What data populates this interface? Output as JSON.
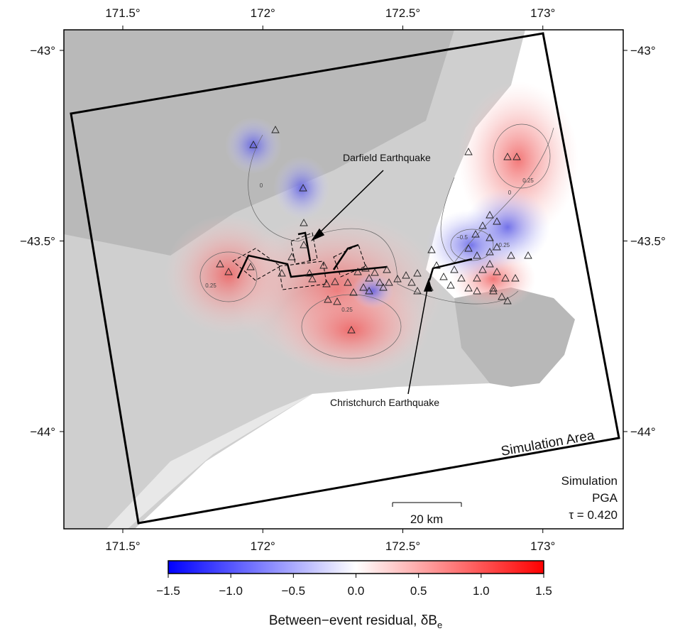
{
  "map": {
    "lon_ticks": [
      {
        "value": 171.5,
        "label": "171.5°"
      },
      {
        "value": 172,
        "label": "172°"
      },
      {
        "value": 172.5,
        "label": "172.5°"
      },
      {
        "value": 173,
        "label": "173°"
      }
    ],
    "lat_ticks": [
      {
        "value": -43,
        "label": "−43°"
      },
      {
        "value": -43.5,
        "label": "−43.5°"
      },
      {
        "value": -44,
        "label": "−44°"
      }
    ],
    "annotations": {
      "darfield": "Darfield Earthquake",
      "christchurch": "Christchurch Earthquake",
      "simulation_area": "Simulation Area"
    },
    "info": [
      "Simulation",
      "PGA",
      "τ = 0.420"
    ],
    "scale_bar": "20 km",
    "contour_labels": [
      "0.25",
      "0.25",
      "0.25",
      "0",
      "0",
      "−0.5",
      "−0.25"
    ]
  },
  "colorbar": {
    "ticks": [
      {
        "value": -1.5,
        "label": "−1.5"
      },
      {
        "value": -1.0,
        "label": "−1.0"
      },
      {
        "value": -0.5,
        "label": "−0.5"
      },
      {
        "value": 0.0,
        "label": "0.0"
      },
      {
        "value": 0.5,
        "label": "0.5"
      },
      {
        "value": 1.0,
        "label": "1.0"
      },
      {
        "value": 1.5,
        "label": "1.5"
      }
    ],
    "label": "Between−event residual, δB",
    "label_subscript": "e"
  }
}
